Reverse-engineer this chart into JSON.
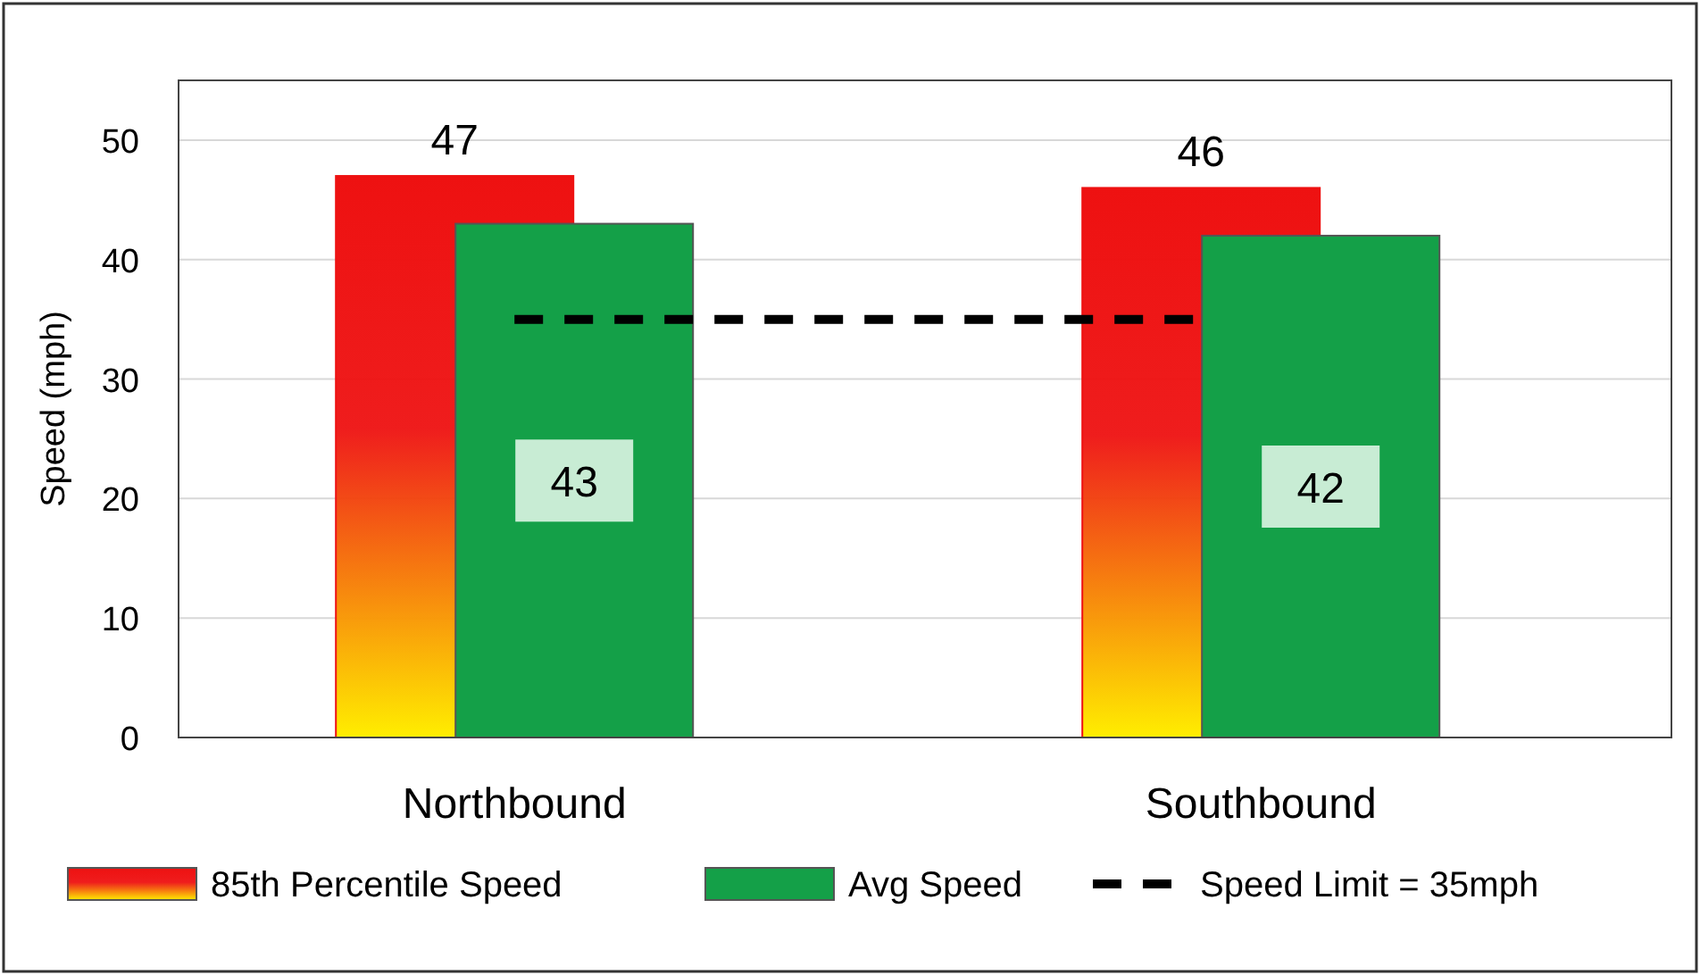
{
  "chart_data": {
    "type": "bar",
    "ylabel": "Speed (mph)",
    "categories": [
      "Northbound",
      "Southbound"
    ],
    "series": [
      {
        "name": "85th Percentile Speed",
        "color": "#ee1111",
        "values": [
          47,
          46
        ]
      },
      {
        "name": "Avg Speed",
        "color": "#14a048",
        "values": [
          43,
          42
        ]
      }
    ],
    "ylim": [
      0,
      55
    ],
    "yticks": [
      0,
      10,
      20,
      30,
      40,
      50
    ],
    "grid": "y",
    "legend": "bottom",
    "data_labels": true,
    "ref_lines": [
      {
        "axis": "y",
        "value": 35,
        "label": "Speed Limit = 35mph",
        "color": "#000000",
        "line_style": "dashed"
      }
    ]
  }
}
